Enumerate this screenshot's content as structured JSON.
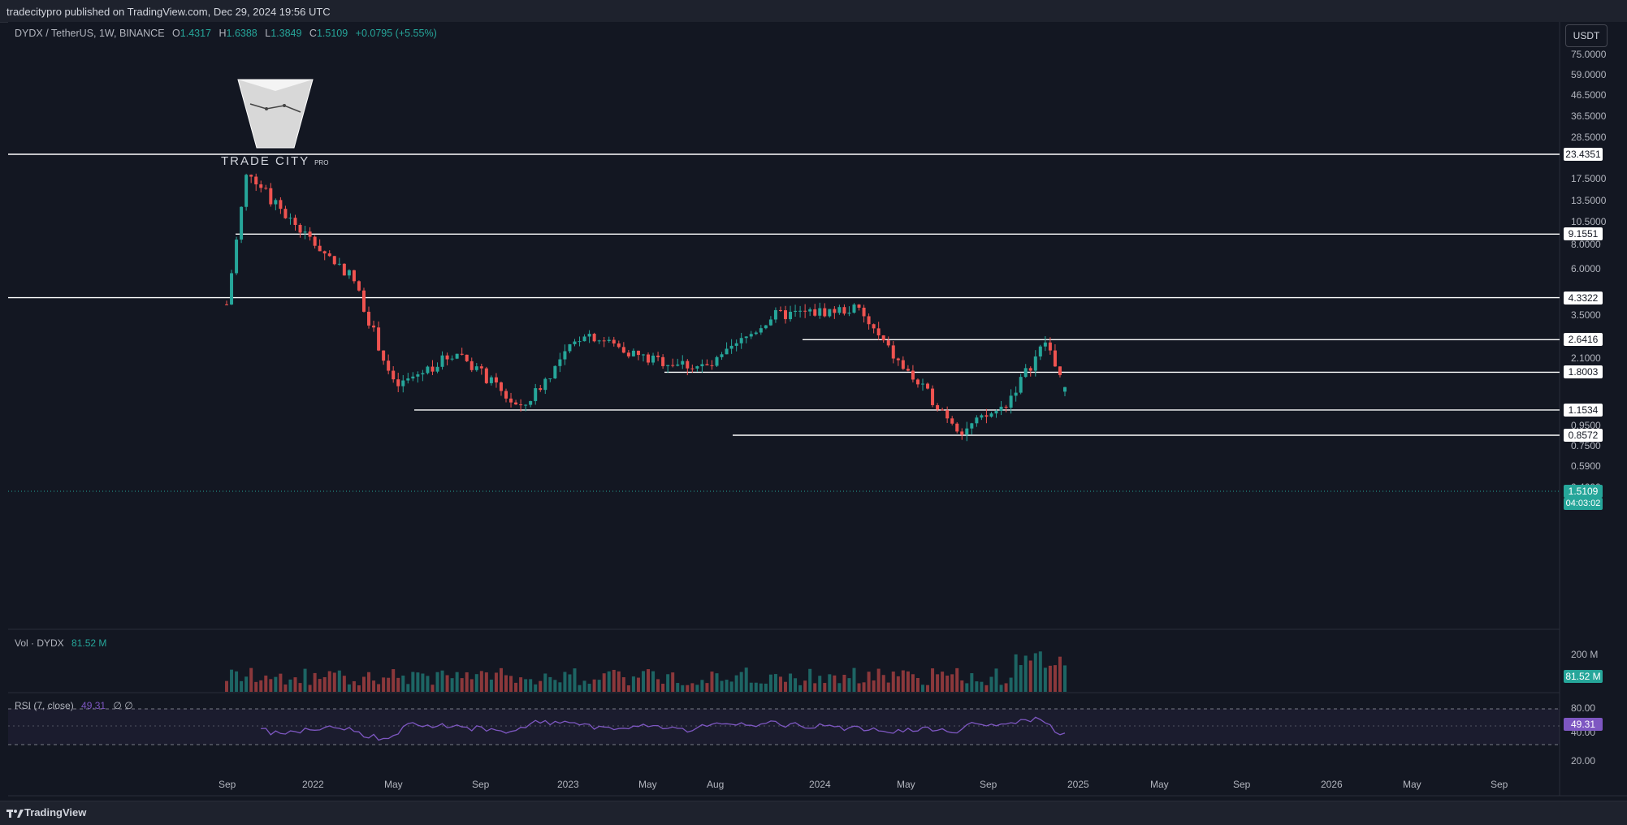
{
  "header": {
    "published": "tradecitypro published on TradingView.com, Dec 29, 2024 19:56 UTC"
  },
  "legend": {
    "symbol": "DYDX / TetherUS, 1W, BINANCE",
    "open_label": "O",
    "open": "1.4317",
    "high_label": "H",
    "high": "1.6388",
    "low_label": "L",
    "low": "1.3849",
    "close_label": "C",
    "close": "1.5109",
    "change": "+0.0795 (+5.55%)"
  },
  "currency_button": "USDT",
  "logo": {
    "brand": "TRADE CITY",
    "suffix": "PRO"
  },
  "price_axis": [
    "75.0000",
    "59.0000",
    "46.5000",
    "36.5000",
    "28.5000",
    "17.5000",
    "13.5000",
    "10.5000",
    "8.0000",
    "6.0000",
    "3.5000",
    "2.1000",
    "0.9500",
    "0.7500",
    "0.5900",
    "0.4600"
  ],
  "levels": [
    "23.4351",
    "9.1551",
    "4.3322",
    "2.6416",
    "1.8003",
    "1.1534",
    "0.8572"
  ],
  "last_price": {
    "value": "1.5109",
    "countdown": "04:03:02"
  },
  "volume_pane": {
    "title": "Vol · DYDX",
    "value": "81.52 M",
    "axis": "200 M",
    "badge": "81.52 M"
  },
  "rsi_pane": {
    "title": "RSI (7, close)",
    "value": "49.31",
    "extra": "∅ ∅",
    "axis": [
      "80.00",
      "40.00",
      "20.00"
    ],
    "badge": "49.31"
  },
  "time_axis": [
    "Sep",
    "2022",
    "May",
    "Sep",
    "2023",
    "May",
    "Aug",
    "2024",
    "May",
    "Sep",
    "2025",
    "May",
    "Sep",
    "2026",
    "May",
    "Sep"
  ],
  "footer": {
    "brand": "TradingView"
  },
  "colors": {
    "up": "#26a69a",
    "down": "#ef5350",
    "rsi": "#7e57c2",
    "background": "#131722"
  },
  "chart_data": {
    "type": "candlestick",
    "symbol": "DYDX / TetherUS",
    "interval": "1W",
    "y_scale": "log",
    "ohlc_last": {
      "open": 1.4317,
      "high": 1.6388,
      "low": 1.3849,
      "close": 1.5109
    },
    "horizontal_levels": [
      23.4351,
      9.1551,
      4.3322,
      2.6416,
      1.8003,
      1.1534,
      0.8572
    ],
    "price_path": [
      {
        "x": "2021-09",
        "close": 4.0
      },
      {
        "x": "2021-10",
        "close": 20.0
      },
      {
        "x": "2021-11",
        "close": 14.0
      },
      {
        "x": "2022-01",
        "close": 8.5
      },
      {
        "x": "2022-03",
        "close": 5.5
      },
      {
        "x": "2022-05",
        "close": 1.5
      },
      {
        "x": "2022-08",
        "close": 2.3
      },
      {
        "x": "2022-11",
        "close": 1.15
      },
      {
        "x": "2023-02",
        "close": 2.9
      },
      {
        "x": "2023-05",
        "close": 2.1
      },
      {
        "x": "2023-08",
        "close": 1.9
      },
      {
        "x": "2023-11",
        "close": 3.5
      },
      {
        "x": "2024-03",
        "close": 3.8
      },
      {
        "x": "2024-05",
        "close": 2.0
      },
      {
        "x": "2024-08",
        "close": 0.9
      },
      {
        "x": "2024-10",
        "close": 1.2
      },
      {
        "x": "2024-12",
        "close": 2.6
      },
      {
        "x": "2024-12-29",
        "close": 1.5109
      }
    ]
  }
}
